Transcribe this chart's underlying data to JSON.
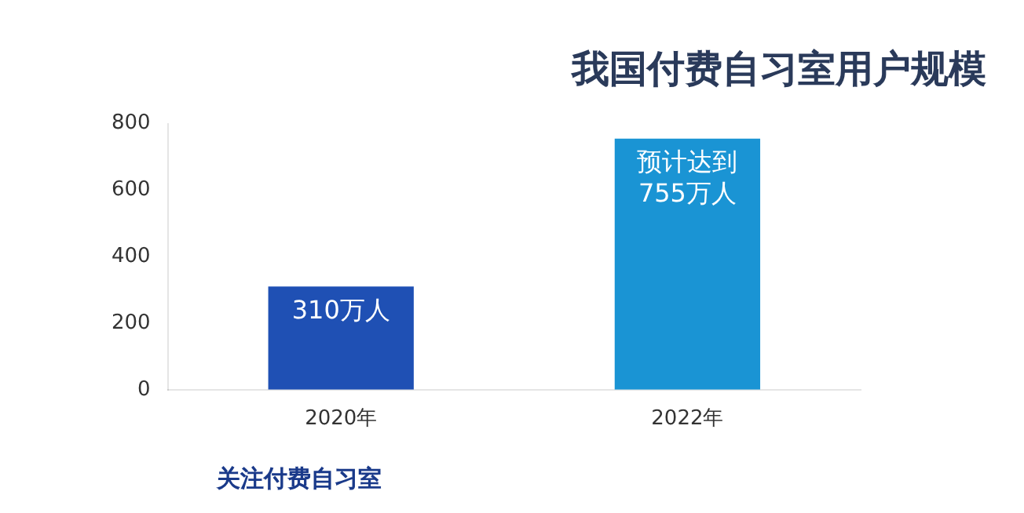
{
  "chart_data": {
    "type": "bar",
    "title": "我国付费自习室用户规模",
    "categories": [
      "2020年",
      "2022年"
    ],
    "values": [
      310,
      755
    ],
    "colors": [
      "#1f50b4",
      "#1a94d4"
    ],
    "value_labels": [
      "310万人",
      "预计达到755万人"
    ],
    "ylim": [
      0,
      800
    ],
    "yticks": [
      0,
      200,
      400,
      600,
      800
    ],
    "grid": false,
    "legend": false,
    "annotations": [
      "关注付费自习室"
    ]
  }
}
